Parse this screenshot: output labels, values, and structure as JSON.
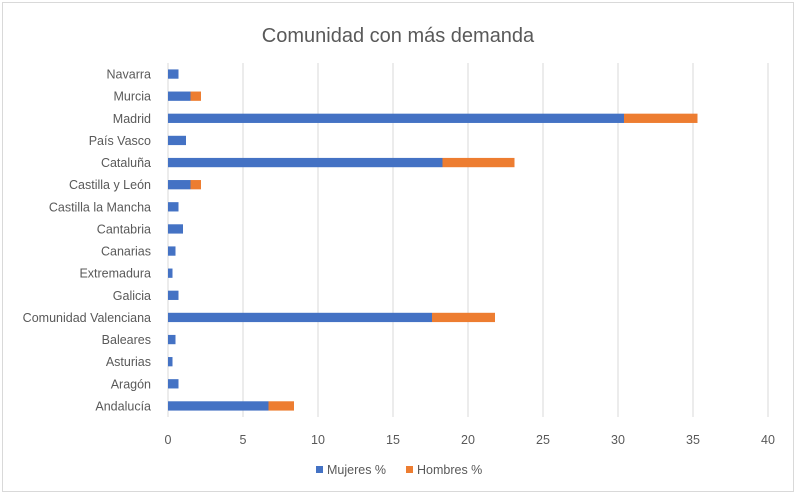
{
  "chart_data": {
    "type": "bar",
    "orientation": "horizontal",
    "stacked": true,
    "title": "Comunidad con más demanda",
    "xlabel": "",
    "ylabel": "",
    "xlim": [
      0,
      40
    ],
    "x_ticks": [
      "0",
      "5",
      "10",
      "15",
      "20",
      "25",
      "30",
      "35",
      "40"
    ],
    "grid": true,
    "legend_position": "bottom",
    "categories": [
      "Navarra",
      "Murcia",
      "Madrid",
      "País Vasco",
      "Cataluña",
      "Castilla y León",
      "Castilla la Mancha",
      "Cantabria",
      "Canarias",
      "Extremadura",
      "Galicia",
      "Comunidad Valenciana",
      "Baleares",
      "Asturias",
      "Aragón",
      "Andalucía"
    ],
    "series": [
      {
        "name": "Mujeres %",
        "color": "#4472c4",
        "values": [
          0.7,
          1.5,
          30.4,
          1.2,
          18.3,
          1.5,
          0.7,
          1.0,
          0.5,
          0.3,
          0.7,
          17.6,
          0.5,
          0.3,
          0.7,
          6.7
        ]
      },
      {
        "name": "Hombres %",
        "color": "#ed7d31",
        "values": [
          0,
          0.7,
          4.9,
          0,
          4.8,
          0.7,
          0,
          0,
          0,
          0,
          0,
          4.2,
          0,
          0,
          0,
          1.7
        ]
      }
    ]
  }
}
